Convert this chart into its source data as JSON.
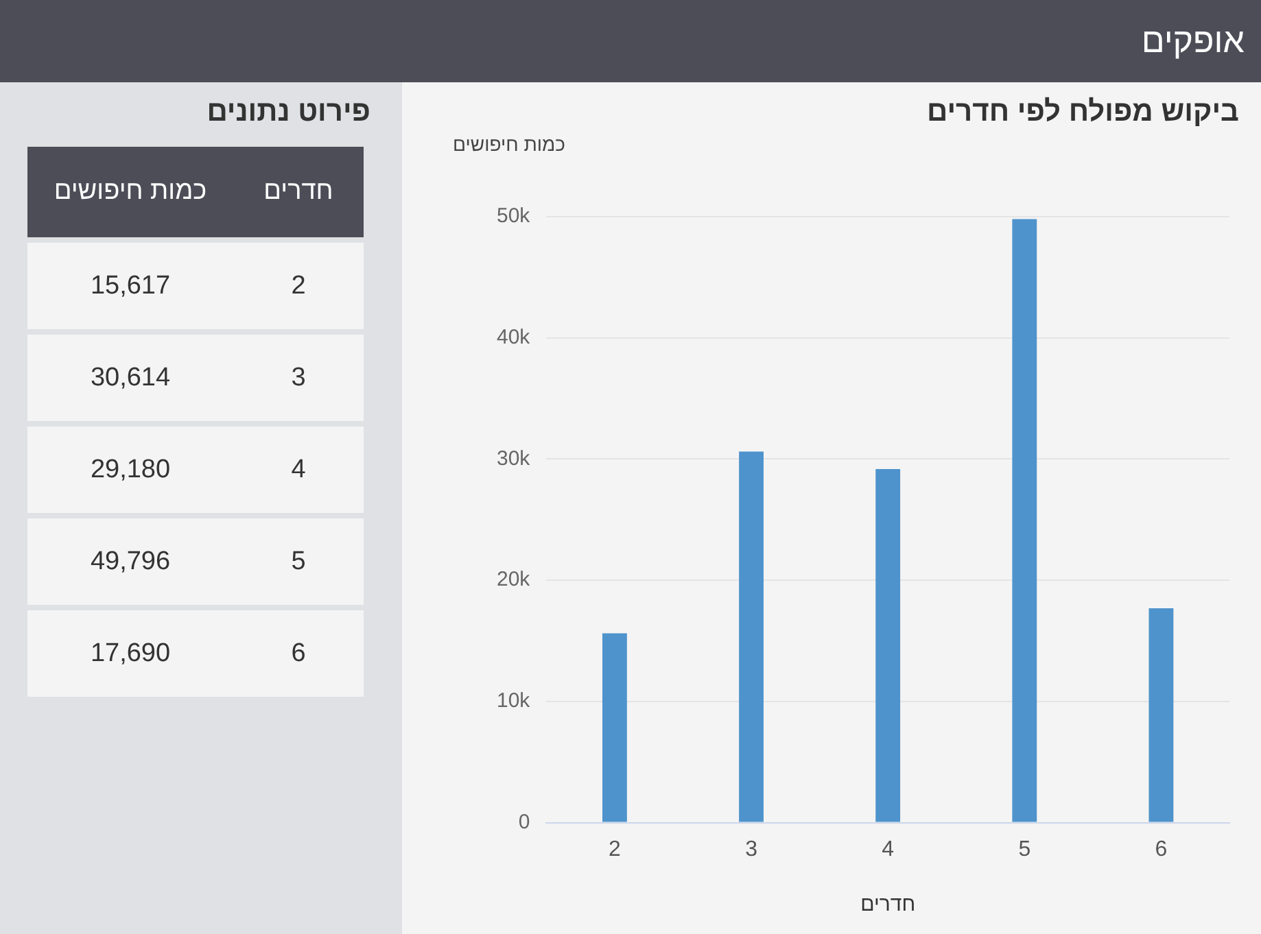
{
  "chart_data": [
    {
      "type": "bar",
      "title": "ביקוש מפולח לפי חדרים",
      "xlabel": "חדרים",
      "ylabel": "כמות חיפושים",
      "categories": [
        "2",
        "3",
        "4",
        "5",
        "6"
      ],
      "values": [
        15617,
        30614,
        29180,
        49796,
        17690
      ],
      "color": "#4e93cc",
      "ylim": [
        0,
        50000
      ],
      "yticks": [
        0,
        {
          "value": 10000,
          "label": "10k"
        },
        {
          "value": 20000,
          "label": "20k"
        },
        {
          "value": 30000,
          "label": "30k"
        },
        {
          "value": 40000,
          "label": "40k"
        },
        {
          "value": 50000,
          "label": "50k"
        }
      ],
      "grid": "y",
      "annotations": [
        "אופקים"
      ]
    },
    {
      "type": "heatmap",
      "title": "פירוט נתונים",
      "ylabel": "חדרים",
      "categories": [
        "כמות חיפושים"
      ],
      "y_categories": [
        "2",
        "3",
        "4",
        "5",
        "6"
      ],
      "cells": [
        [
          15617
        ],
        [
          30614
        ],
        [
          29180
        ],
        [
          49796
        ],
        [
          17690
        ]
      ],
      "cell_labels": [
        [
          "15,617"
        ],
        [
          "30,614"
        ],
        [
          "29,180"
        ],
        [
          "49,796"
        ],
        [
          "17,690"
        ]
      ]
    }
  ]
}
